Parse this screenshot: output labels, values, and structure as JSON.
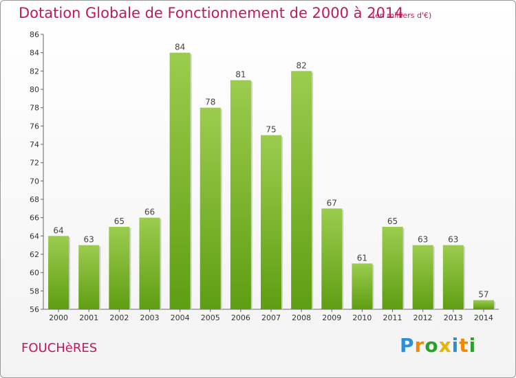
{
  "chart_data": {
    "type": "bar",
    "title": "Dotation Globale de Fonctionnement de 2000 à 2014",
    "subtitle": "(en milliers d'€)",
    "categories": [
      "2000",
      "2001",
      "2002",
      "2003",
      "2004",
      "2005",
      "2006",
      "2007",
      "2008",
      "2009",
      "2010",
      "2011",
      "2012",
      "2013",
      "2014"
    ],
    "values": [
      64,
      63,
      65,
      66,
      84,
      78,
      81,
      75,
      82,
      67,
      61,
      65,
      63,
      63,
      57
    ],
    "ylim": [
      56,
      86
    ],
    "yticks": [
      56,
      58,
      60,
      62,
      64,
      66,
      68,
      70,
      72,
      74,
      76,
      78,
      80,
      82,
      84,
      86
    ],
    "grid": false,
    "colors": {
      "bar_top": "#9ccc4e",
      "bar_bottom": "#5e9e12",
      "label": "#444444",
      "title": "#c2185b"
    }
  },
  "footer": {
    "commune": "FOUCHèRES",
    "logo": "Proxiti"
  }
}
